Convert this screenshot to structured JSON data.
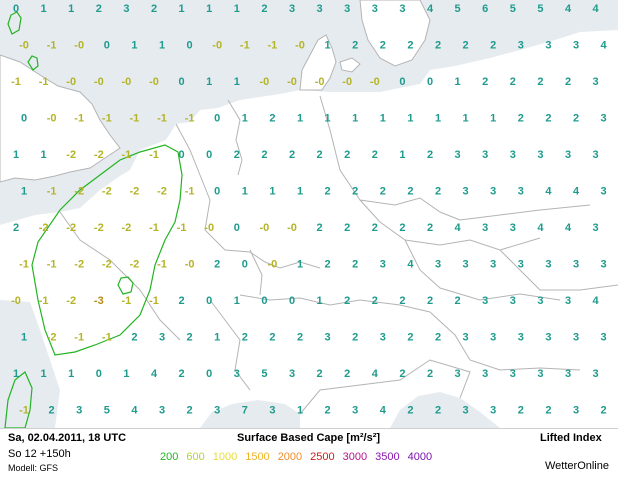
{
  "header": {
    "run_date": "Sa, 02.04.2011, 18 UTC",
    "forecast_step": "So 12 +150h",
    "model": "Modell: GFS"
  },
  "product": {
    "title": "Surface Based Cape [m²/s²]",
    "subtitle": "Lifted Index"
  },
  "brand": "WetterOnline",
  "legend": [
    {
      "label": "200",
      "color": "#22b422"
    },
    {
      "label": "600",
      "color": "#b4d23c"
    },
    {
      "label": "1000",
      "color": "#e6dc3c"
    },
    {
      "label": "1500",
      "color": "#f0b428"
    },
    {
      "label": "2000",
      "color": "#f08c28"
    },
    {
      "label": "2500",
      "color": "#c81e1e"
    },
    {
      "label": "3000",
      "color": "#b4148c"
    },
    {
      "label": "3500",
      "color": "#8c14b4"
    },
    {
      "label": "4000",
      "color": "#7814aa"
    }
  ],
  "colors": {
    "sea": "#e6ebf0",
    "land": "#ffffff",
    "border": "#b4b4b4",
    "cape_contour": "#22b422",
    "li_positive": "#1e9b8c",
    "li_negative": "#b4b428",
    "li_strong_negative": "#b48c14"
  },
  "lifted_index_values": [
    [
      "0",
      "1",
      "1",
      "2",
      "3",
      "2",
      "1",
      "1",
      "1",
      "2",
      "3",
      "3",
      "3",
      "3",
      "3",
      "4",
      "5",
      "6",
      "5",
      "5",
      "4",
      "4"
    ],
    [
      "-0",
      "-1",
      "-0",
      "0",
      "1",
      "1",
      "0",
      "-0",
      "-1",
      "-1",
      "-0",
      "1",
      "2",
      "2",
      "2",
      "2",
      "2",
      "2",
      "3",
      "3",
      "3",
      "4"
    ],
    [
      "-1",
      "-1",
      "-0",
      "-0",
      "-0",
      "-0",
      "0",
      "1",
      "1",
      "-0",
      "-0",
      "-0",
      "-0",
      "-0",
      "0",
      "0",
      "1",
      "2",
      "2",
      "2",
      "2",
      "3"
    ],
    [
      "0",
      "-0",
      "-1",
      "-1",
      "-1",
      "-1",
      "-1",
      "0",
      "1",
      "2",
      "1",
      "1",
      "1",
      "1",
      "1",
      "1",
      "1",
      "1",
      "2",
      "2",
      "2",
      "3"
    ],
    [
      "1",
      "1",
      "-2",
      "-2",
      "-1",
      "-1",
      "0",
      "0",
      "2",
      "2",
      "2",
      "2",
      "2",
      "2",
      "1",
      "2",
      "3",
      "3",
      "3",
      "3",
      "3",
      "3"
    ],
    [
      "1",
      "-1",
      "-2",
      "-2",
      "-2",
      "-2",
      "-1",
      "0",
      "1",
      "1",
      "1",
      "2",
      "2",
      "2",
      "2",
      "2",
      "3",
      "3",
      "3",
      "4",
      "4",
      "3"
    ],
    [
      "2",
      "-2",
      "-2",
      "-2",
      "-2",
      "-1",
      "-1",
      "-0",
      "0",
      "-0",
      "-0",
      "2",
      "2",
      "2",
      "2",
      "2",
      "4",
      "3",
      "3",
      "4",
      "4",
      "3"
    ],
    [
      "-1",
      "-1",
      "-2",
      "-2",
      "-2",
      "-1",
      "-0",
      "2",
      "0",
      "-0",
      "1",
      "2",
      "2",
      "3",
      "4",
      "3",
      "3",
      "3",
      "3",
      "3",
      "3",
      "3"
    ],
    [
      "-0",
      "-1",
      "-2",
      "-3",
      "-1",
      "-1",
      "2",
      "0",
      "1",
      "0",
      "0",
      "1",
      "2",
      "2",
      "2",
      "2",
      "2",
      "3",
      "3",
      "3",
      "3",
      "4"
    ],
    [
      "1",
      "-2",
      "-1",
      "-1",
      "2",
      "3",
      "2",
      "1",
      "2",
      "2",
      "2",
      "3",
      "2",
      "3",
      "2",
      "2",
      "3",
      "3",
      "3",
      "3",
      "3",
      "3"
    ],
    [
      "1",
      "1",
      "1",
      "0",
      "1",
      "4",
      "2",
      "0",
      "3",
      "5",
      "3",
      "2",
      "2",
      "4",
      "2",
      "2",
      "3",
      "3",
      "3",
      "3",
      "3",
      "3"
    ],
    [
      "-1",
      "2",
      "3",
      "5",
      "4",
      "3",
      "2",
      "3",
      "7",
      "3",
      "1",
      "2",
      "3",
      "4",
      "2",
      "2",
      "3",
      "3",
      "2",
      "2",
      "3",
      "2"
    ]
  ]
}
